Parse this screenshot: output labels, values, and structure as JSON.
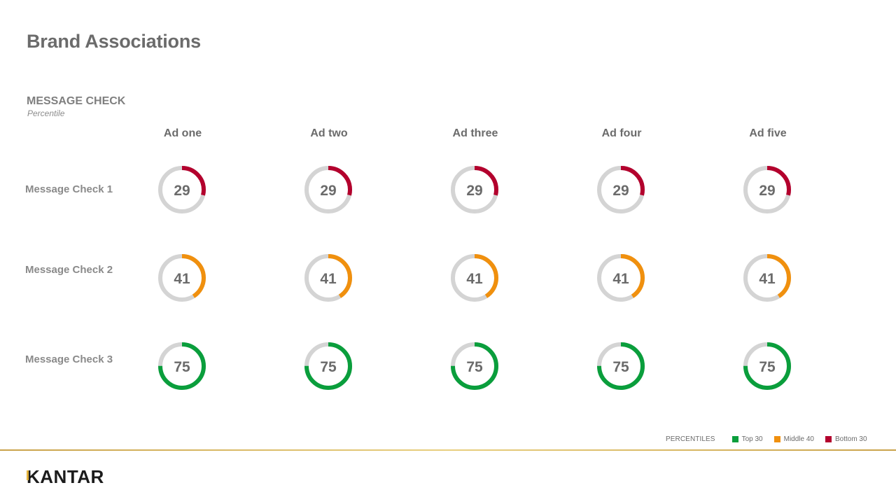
{
  "page": {
    "title": "Brand Associations",
    "section_title": "MESSAGE CHECK",
    "section_subtitle": "Percentile"
  },
  "chart_data": {
    "type": "donut-grid",
    "columns": [
      "Ad one",
      "Ad two",
      "Ad three",
      "Ad four",
      "Ad five"
    ],
    "rows": [
      {
        "label": "Message Check 1",
        "values": [
          29,
          29,
          29,
          29,
          29
        ]
      },
      {
        "label": "Message Check 2",
        "values": [
          41,
          41,
          41,
          41,
          41
        ]
      },
      {
        "label": "Message Check 3",
        "values": [
          75,
          75,
          75,
          75,
          75
        ]
      }
    ],
    "max": 100,
    "track_color": "#d4d4d4"
  },
  "legend": {
    "title": "PERCENTILES",
    "items": [
      {
        "label": "Top 30",
        "color": "#0a9e3c"
      },
      {
        "label": "Middle 40",
        "color": "#f0900e"
      },
      {
        "label": "Bottom 30",
        "color": "#b3002d"
      }
    ]
  },
  "footer": {
    "logo": "KANTAR",
    "accent_color": "#e3b23c"
  }
}
